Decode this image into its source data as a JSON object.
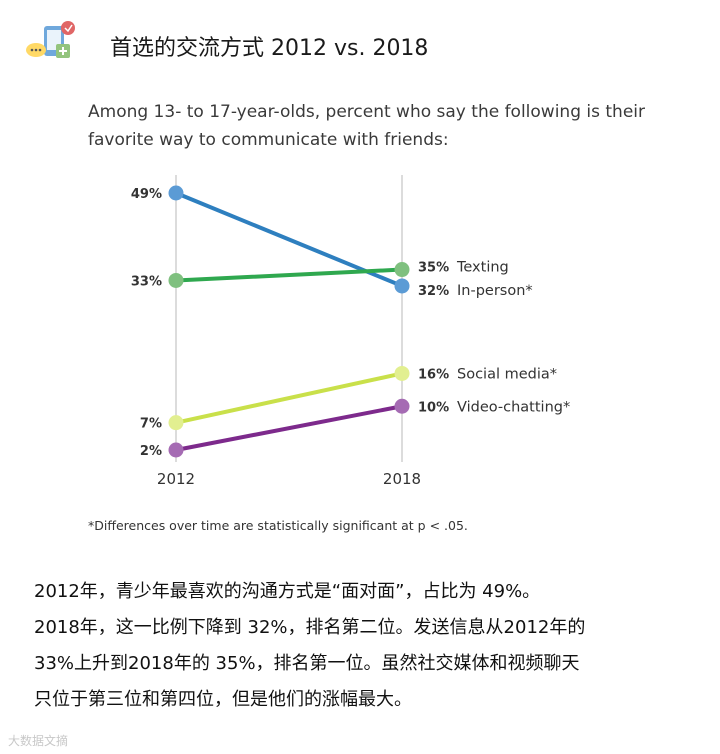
{
  "header": {
    "title": "首选的交流方式  2012 vs. 2018"
  },
  "chart_data": {
    "type": "line",
    "title": "",
    "subtitle": "Among 13- to 17-year-olds, percent who say the following is their favorite way to communicate with friends:",
    "x": [
      "2012",
      "2018"
    ],
    "ylabel": "",
    "ylim": [
      0,
      50
    ],
    "grid": false,
    "series": [
      {
        "name": "In-person*",
        "values": [
          49,
          32
        ],
        "labels": [
          "49%",
          "32%"
        ],
        "color": "#2e7fbf",
        "point_color": "#5b9bd5",
        "label_left": true
      },
      {
        "name": "Texting",
        "values": [
          33,
          35
        ],
        "labels": [
          "33%",
          "35%"
        ],
        "color": "#2fa84f",
        "point_color": "#7fc07f",
        "label_left": true
      },
      {
        "name": "Social media*",
        "values": [
          7,
          16
        ],
        "labels": [
          "7%",
          "16%"
        ],
        "color": "#c9e04a",
        "point_color": "#e2ef90",
        "label_left": true
      },
      {
        "name": "Video-chatting*",
        "values": [
          2,
          10
        ],
        "labels": [
          "2%",
          "10%"
        ],
        "color": "#7d2a8c",
        "point_color": "#a56bb3",
        "label_left": true
      }
    ],
    "footnote": "*Differences over time are statistically significant at p < .05."
  },
  "body": {
    "line1": "2012年，青少年最喜欢的沟通方式是“面对面”，占比为 49%。",
    "line2": "2018年，这一比例下降到 32%，排名第二位。发送信息从2012年的",
    "line3": "33%上升到2018年的 35%，排名第一位。虽然社交媒体和视频聊天",
    "line4": "只位于第三位和第四位，但是他们的涨幅最大。"
  },
  "watermark": "大数据文摘"
}
